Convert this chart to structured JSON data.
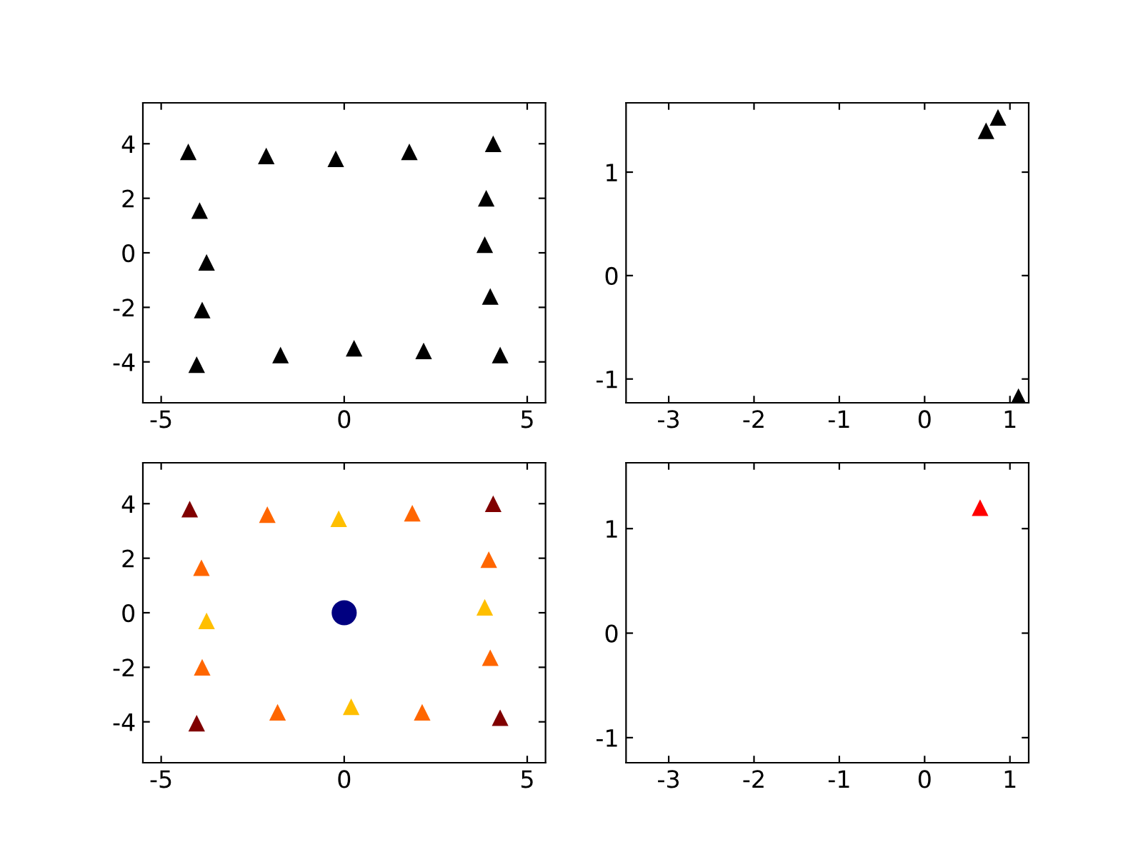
{
  "chart_data": [
    {
      "type": "scatter",
      "marker": "triangle",
      "x": [
        -4.26,
        -2.13,
        -0.23,
        1.78,
        4.07,
        -3.95,
        3.88,
        -3.76,
        3.84,
        -3.88,
        3.99,
        -4.03,
        -1.74,
        0.27,
        2.17,
        4.26
      ],
      "series": [
        {
          "color": "#000000",
          "values": [
            3.7,
            3.55,
            3.45,
            3.7,
            4.0,
            1.55,
            2.0,
            -0.35,
            0.3,
            -2.1,
            -1.6,
            -4.1,
            -3.75,
            -3.5,
            -3.6,
            -3.75
          ]
        }
      ],
      "xlim": [
        -5.5,
        5.5
      ],
      "ylim": [
        -5.5,
        5.5
      ],
      "xticks": [
        -5,
        0,
        5
      ],
      "yticks": [
        -4,
        -2,
        0,
        2,
        4
      ],
      "grid": false
    },
    {
      "type": "scatter",
      "marker": "triangle",
      "x": [
        0.72,
        0.86,
        1.1
      ],
      "series": [
        {
          "color": "#000000",
          "values": [
            1.4,
            1.53,
            -1.17
          ]
        }
      ],
      "xlim": [
        -3.5,
        1.22
      ],
      "ylim": [
        -1.23,
        1.67
      ],
      "xticks": [
        -3,
        -2,
        -1,
        0,
        1
      ],
      "yticks": [
        -1,
        0,
        1
      ],
      "grid": false
    },
    {
      "type": "scatter",
      "marker": "triangle",
      "x": [
        -4.22,
        -2.1,
        -0.15,
        1.86,
        4.07,
        -3.9,
        3.95,
        -3.76,
        3.84,
        -3.88,
        3.99,
        -4.03,
        -1.82,
        0.19,
        2.13,
        4.26
      ],
      "series": [
        {
          "values": [
            3.8,
            3.6,
            3.45,
            3.65,
            4.0,
            1.65,
            1.95,
            -0.3,
            0.2,
            -2.0,
            -1.65,
            -4.05,
            -3.65,
            -3.45,
            -3.65,
            -3.85
          ],
          "colors": [
            "#800000",
            "#ff6600",
            "#ffbf00",
            "#ff6600",
            "#800000",
            "#ff6600",
            "#ff6600",
            "#ffbf00",
            "#ffbf00",
            "#ff6600",
            "#ff6600",
            "#800000",
            "#ff6600",
            "#ffbf00",
            "#ff6600",
            "#800000"
          ]
        },
        {
          "x": [
            0
          ],
          "values": [
            0
          ],
          "color": "#000080",
          "marker": "circle"
        }
      ],
      "xlim": [
        -5.5,
        5.5
      ],
      "ylim": [
        -5.5,
        5.5
      ],
      "xticks": [
        -5,
        0,
        5
      ],
      "yticks": [
        -4,
        -2,
        0,
        2,
        4
      ],
      "grid": false
    },
    {
      "type": "scatter",
      "marker": "triangle",
      "x": [
        0.65
      ],
      "series": [
        {
          "color": "#ff0000",
          "values": [
            1.2
          ]
        }
      ],
      "xlim": [
        -3.5,
        1.22
      ],
      "ylim": [
        -1.24,
        1.63
      ],
      "xticks": [
        -3,
        -2,
        -1,
        0,
        1
      ],
      "yticks": [
        -1,
        0,
        1
      ],
      "grid": false
    }
  ]
}
